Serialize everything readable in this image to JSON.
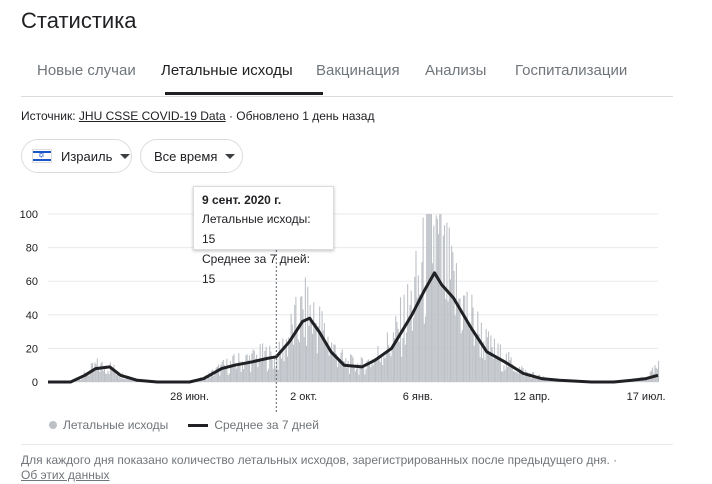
{
  "page": {
    "title": "Статистика"
  },
  "tabs": [
    {
      "label": "Новые случаи",
      "active": false
    },
    {
      "label": "Летальные исходы",
      "active": true
    },
    {
      "label": "Вакцинация",
      "active": false
    },
    {
      "label": "Анализы",
      "active": false
    },
    {
      "label": "Госпитализации",
      "active": false
    }
  ],
  "source": {
    "prefix": "Источник:",
    "link": "JHU CSSE COVID-19 Data",
    "updated": " · Обновлено 1 день назад"
  },
  "filters": {
    "region": "Израиль",
    "region_flag_icon": "israel-flag-icon",
    "period": "Все время"
  },
  "tooltip": {
    "date": "9 сент. 2020 г.",
    "deaths_label": "Летальные исходы:",
    "deaths_value": "15",
    "avg_label": "Среднее за 7 дней:",
    "avg_value": "15"
  },
  "legend": {
    "bars": "Летальные исходы",
    "line": "Среднее за 7 дней"
  },
  "footnote": {
    "text": "Для каждого дня показано количество летальных исходов, зарегистрированных после предыдущего дня.",
    "link": "Об этих данных"
  },
  "colors": {
    "bars": "#bdc1c6",
    "line": "#202124",
    "grid": "#e8eaed"
  },
  "chart_data": {
    "type": "bar",
    "y_ticks": [
      0,
      20,
      40,
      60,
      80,
      100
    ],
    "ylim": [
      0,
      100
    ],
    "x_ticks": [
      {
        "label": "28 июн.",
        "date": "2020-06-28"
      },
      {
        "label": "2 окт.",
        "date": "2020-10-02"
      },
      {
        "label": "6 янв.",
        "date": "2021-01-06"
      },
      {
        "label": "12 апр.",
        "date": "2021-04-12"
      },
      {
        "label": "17 июл.",
        "date": "2021-07-17"
      }
    ],
    "x_range": [
      "2020-03-01",
      "2021-07-27"
    ],
    "highlight_date": "2020-09-09",
    "series": [
      {
        "name": "Среднее за 7 дней",
        "type": "line",
        "points": [
          [
            "2020-03-01",
            0
          ],
          [
            "2020-03-20",
            0
          ],
          [
            "2020-04-01",
            4
          ],
          [
            "2020-04-10",
            8
          ],
          [
            "2020-04-22",
            9
          ],
          [
            "2020-05-01",
            4
          ],
          [
            "2020-05-15",
            1
          ],
          [
            "2020-06-01",
            0
          ],
          [
            "2020-06-28",
            0
          ],
          [
            "2020-07-10",
            2
          ],
          [
            "2020-07-25",
            8
          ],
          [
            "2020-08-05",
            10
          ],
          [
            "2020-08-20",
            12
          ],
          [
            "2020-09-01",
            14
          ],
          [
            "2020-09-09",
            15
          ],
          [
            "2020-09-20",
            24
          ],
          [
            "2020-10-01",
            36
          ],
          [
            "2020-10-07",
            38
          ],
          [
            "2020-10-15",
            30
          ],
          [
            "2020-10-25",
            18
          ],
          [
            "2020-11-05",
            10
          ],
          [
            "2020-11-20",
            9
          ],
          [
            "2020-12-01",
            13
          ],
          [
            "2020-12-15",
            20
          ],
          [
            "2021-01-01",
            40
          ],
          [
            "2021-01-12",
            55
          ],
          [
            "2021-01-20",
            65
          ],
          [
            "2021-01-26",
            58
          ],
          [
            "2021-02-05",
            50
          ],
          [
            "2021-02-20",
            32
          ],
          [
            "2021-03-05",
            18
          ],
          [
            "2021-03-20",
            12
          ],
          [
            "2021-04-05",
            5
          ],
          [
            "2021-04-20",
            2
          ],
          [
            "2021-05-05",
            1
          ],
          [
            "2021-06-01",
            0
          ],
          [
            "2021-06-20",
            0
          ],
          [
            "2021-07-05",
            1
          ],
          [
            "2021-07-17",
            2
          ],
          [
            "2021-07-27",
            4
          ]
        ]
      },
      {
        "name": "Летальные исходы",
        "type": "bar",
        "points": [
          [
            "2020-03-01",
            0
          ],
          [
            "2020-03-20",
            0
          ],
          [
            "2020-04-01",
            5
          ],
          [
            "2020-04-10",
            11
          ],
          [
            "2020-04-22",
            10
          ],
          [
            "2020-05-01",
            5
          ],
          [
            "2020-05-15",
            2
          ],
          [
            "2020-06-01",
            0
          ],
          [
            "2020-06-28",
            0
          ],
          [
            "2020-07-10",
            3
          ],
          [
            "2020-07-25",
            10
          ],
          [
            "2020-08-05",
            13
          ],
          [
            "2020-08-20",
            16
          ],
          [
            "2020-09-01",
            18
          ],
          [
            "2020-09-09",
            15
          ],
          [
            "2020-09-20",
            32
          ],
          [
            "2020-10-01",
            46
          ],
          [
            "2020-10-07",
            47
          ],
          [
            "2020-10-15",
            38
          ],
          [
            "2020-10-25",
            24
          ],
          [
            "2020-11-05",
            13
          ],
          [
            "2020-11-20",
            11
          ],
          [
            "2020-12-01",
            17
          ],
          [
            "2020-12-15",
            27
          ],
          [
            "2021-01-01",
            53
          ],
          [
            "2021-01-12",
            80
          ],
          [
            "2021-01-18",
            101
          ],
          [
            "2021-01-26",
            80
          ],
          [
            "2021-02-05",
            62
          ],
          [
            "2021-02-20",
            42
          ],
          [
            "2021-03-05",
            24
          ],
          [
            "2021-03-20",
            15
          ],
          [
            "2021-04-05",
            7
          ],
          [
            "2021-04-20",
            3
          ],
          [
            "2021-05-05",
            1
          ],
          [
            "2021-06-01",
            0
          ],
          [
            "2021-06-20",
            1
          ],
          [
            "2021-07-05",
            1
          ],
          [
            "2021-07-17",
            3
          ],
          [
            "2021-07-27",
            10
          ]
        ]
      }
    ]
  }
}
